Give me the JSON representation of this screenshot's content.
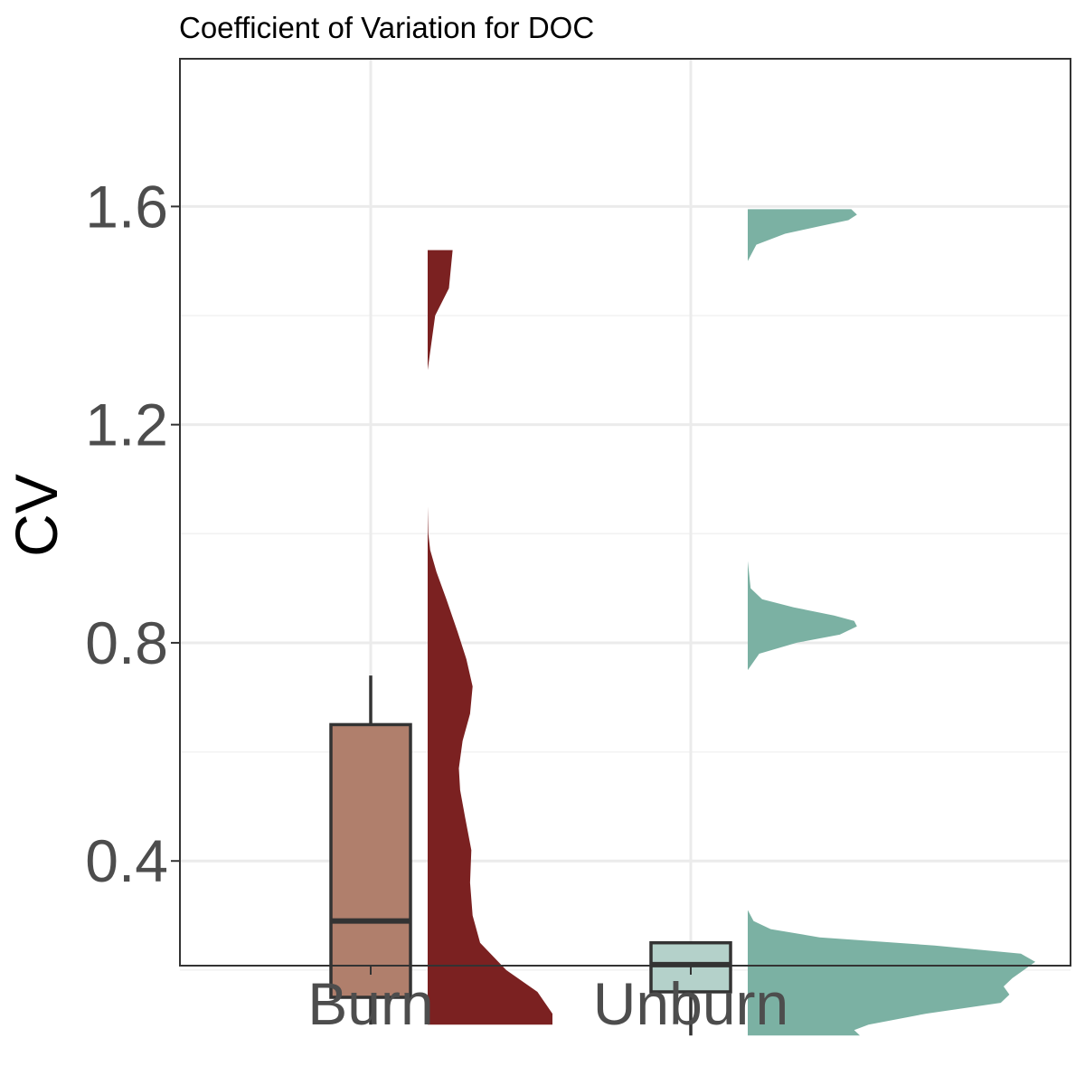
{
  "chart_data": {
    "type": "raincloud",
    "title": "Coefficient of Variation for DOC",
    "xlabel": "",
    "ylabel": "CV",
    "categories": [
      "Burn",
      "Unburn"
    ],
    "ylim": [
      0.03,
      1.67
    ],
    "y_ticks": [
      "0.4",
      "0.8",
      "1.2",
      "1.6"
    ],
    "y_tick_values": [
      0.4,
      0.8,
      1.2,
      1.6
    ],
    "y_minor_ticks": [
      0.2,
      0.6,
      1.0,
      1.4
    ],
    "grid": true,
    "series": [
      {
        "category": "Burn",
        "box": {
          "min": 0.1,
          "q1": 0.15,
          "median": 0.29,
          "q3": 0.65,
          "max": 0.74
        },
        "box_fill": "#b07f6c",
        "density_fill": "#7b2121",
        "density": {
          "y": [
            0.1,
            0.12,
            0.16,
            0.2,
            0.25,
            0.3,
            0.36,
            0.42,
            0.48,
            0.53,
            0.57,
            0.62,
            0.67,
            0.72,
            0.77,
            0.82,
            0.88,
            0.93,
            0.97,
            1.0,
            1.05,
            1.1,
            1.2,
            1.3,
            1.4,
            1.45,
            1.52
          ],
          "width": [
            1.0,
            1.0,
            0.88,
            0.63,
            0.42,
            0.36,
            0.34,
            0.35,
            0.3,
            0.26,
            0.25,
            0.28,
            0.34,
            0.36,
            0.31,
            0.24,
            0.15,
            0.07,
            0.02,
            0.005,
            0.0,
            0.0,
            0.0,
            0.0,
            0.06,
            0.17,
            0.2
          ]
        }
      },
      {
        "category": "Unburn",
        "box": {
          "min": 0.08,
          "q1": 0.16,
          "median": 0.21,
          "q3": 0.25,
          "max": 0.25
        },
        "box_fill": "#b4d1ca",
        "density_fill": "#7bb1a3",
        "density": {
          "y": [
            0.08,
            0.09,
            0.1,
            0.12,
            0.14,
            0.155,
            0.17,
            0.185,
            0.2,
            0.215,
            0.23,
            0.245,
            0.26,
            0.275,
            0.29,
            0.31,
            0.35,
            0.45,
            0.6,
            0.75,
            0.78,
            0.8,
            0.815,
            0.83,
            0.84,
            0.85,
            0.865,
            0.88,
            0.9,
            0.95,
            1.1,
            1.3,
            1.45,
            1.5,
            1.53,
            1.55,
            1.565,
            1.575,
            1.585,
            1.595
          ],
          "width": [
            0.39,
            0.37,
            0.42,
            0.62,
            0.88,
            0.91,
            0.89,
            0.92,
            0.96,
            1.0,
            0.95,
            0.65,
            0.25,
            0.08,
            0.02,
            0.0,
            0.0,
            0.0,
            0.0,
            0.0,
            0.04,
            0.17,
            0.32,
            0.38,
            0.37,
            0.3,
            0.16,
            0.05,
            0.01,
            0.0,
            0.0,
            0.0,
            0.0,
            0.0,
            0.03,
            0.13,
            0.26,
            0.35,
            0.38,
            0.36
          ]
        }
      }
    ]
  }
}
